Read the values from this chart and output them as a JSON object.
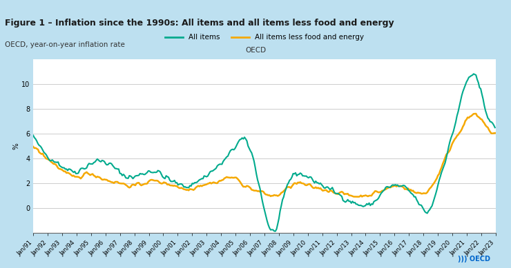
{
  "title": "Figure 1 – Inflation since the 1990s: All items and all items less food and energy",
  "subtitle": "OECD, year-on-year inflation rate",
  "area_label": "OECD",
  "ylabel": "%",
  "line1_label": "All items",
  "line2_label": "All items less food and energy",
  "line1_color": "#00AA8D",
  "line2_color": "#F5A800",
  "background_color": "#ADD8E6",
  "plot_bg_color": "#FFFFFF",
  "header_bg": "#BDE0F0",
  "ylim": [
    -2,
    12
  ],
  "yticks": [
    0,
    2,
    4,
    6,
    8,
    10
  ],
  "x_start_year": 1991,
  "x_end_year": 2024
}
